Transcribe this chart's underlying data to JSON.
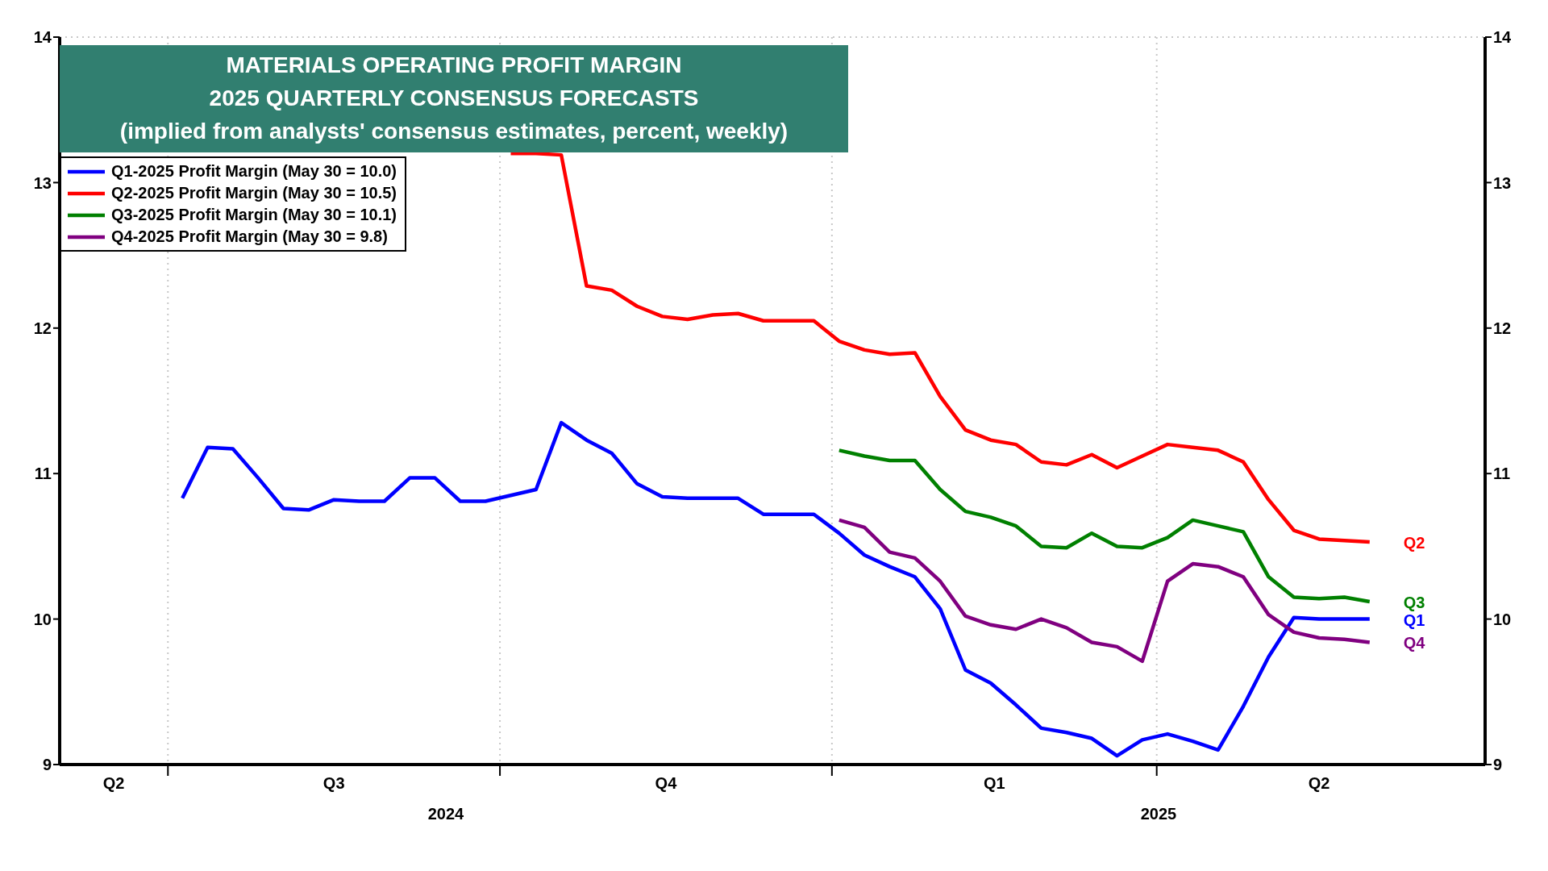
{
  "chart_data": {
    "type": "line",
    "title": "MATERIALS OPERATING PROFIT MARGIN",
    "subtitle": "2025 QUARTERLY CONSENSUS FORECASTS\n(implied from analysts' consensus estimates, percent, weekly)",
    "x": [
      "2024-07-05",
      "2024-07-12",
      "2024-07-19",
      "2024-07-26",
      "2024-08-02",
      "2024-08-09",
      "2024-08-16",
      "2024-08-23",
      "2024-08-30",
      "2024-09-06",
      "2024-09-13",
      "2024-09-20",
      "2024-09-27",
      "2024-10-04",
      "2024-10-11",
      "2024-10-18",
      "2024-10-25",
      "2024-11-01",
      "2024-11-08",
      "2024-11-15",
      "2024-11-22",
      "2024-11-29",
      "2024-12-06",
      "2024-12-13",
      "2024-12-20",
      "2024-12-27",
      "2025-01-03",
      "2025-01-10",
      "2025-01-17",
      "2025-01-24",
      "2025-01-31",
      "2025-02-07",
      "2025-02-14",
      "2025-02-21",
      "2025-02-28",
      "2025-03-07",
      "2025-03-14",
      "2025-03-21",
      "2025-03-28",
      "2025-04-04",
      "2025-04-11",
      "2025-04-18",
      "2025-04-25",
      "2025-05-02",
      "2025-05-09",
      "2025-05-16",
      "2025-05-23",
      "2025-05-30"
    ],
    "series": [
      {
        "name": "Q1-2025 Profit Margin (May 30 = 10.0)",
        "color": "#0000ff",
        "values": [
          10.83,
          11.18,
          11.17,
          10.97,
          10.76,
          10.75,
          10.82,
          10.81,
          10.81,
          10.97,
          10.97,
          10.81,
          10.81,
          10.85,
          10.89,
          11.35,
          11.23,
          11.14,
          10.93,
          10.84,
          10.83,
          10.83,
          10.83,
          10.72,
          10.72,
          10.72,
          10.59,
          10.44,
          10.36,
          10.29,
          10.07,
          9.65,
          9.56,
          9.41,
          9.25,
          9.22,
          9.18,
          9.06,
          9.17,
          9.21,
          9.16,
          9.1,
          9.4,
          9.74,
          10.01,
          10.0,
          10.0,
          10.0
        ]
      },
      {
        "name": "Q2-2025 Profit Margin (May 30 = 10.5)",
        "color": "#ff0000",
        "values": [
          null,
          null,
          null,
          null,
          null,
          null,
          null,
          null,
          null,
          null,
          null,
          null,
          null,
          13.2,
          13.2,
          13.19,
          12.29,
          12.26,
          12.15,
          12.08,
          12.06,
          12.09,
          12.1,
          12.05,
          12.05,
          12.05,
          11.91,
          11.85,
          11.82,
          11.83,
          11.53,
          11.3,
          11.23,
          11.2,
          11.08,
          11.06,
          11.13,
          11.04,
          11.12,
          11.2,
          11.18,
          11.16,
          11.08,
          10.82,
          10.61,
          10.55,
          10.54,
          10.53
        ]
      },
      {
        "name": "Q3-2025 Profit Margin (May 30 = 10.1)",
        "color": "#008000",
        "values": [
          null,
          null,
          null,
          null,
          null,
          null,
          null,
          null,
          null,
          null,
          null,
          null,
          null,
          null,
          null,
          null,
          null,
          null,
          null,
          null,
          null,
          null,
          null,
          null,
          null,
          null,
          11.16,
          11.12,
          11.09,
          11.09,
          10.89,
          10.74,
          10.7,
          10.64,
          10.5,
          10.49,
          10.59,
          10.5,
          10.49,
          10.56,
          10.68,
          10.64,
          10.6,
          10.29,
          10.15,
          10.14,
          10.15,
          10.12
        ]
      },
      {
        "name": "Q4-2025 Profit Margin (May 30 = 9.8)",
        "color": "#800080",
        "values": [
          null,
          null,
          null,
          null,
          null,
          null,
          null,
          null,
          null,
          null,
          null,
          null,
          null,
          null,
          null,
          null,
          null,
          null,
          null,
          null,
          null,
          null,
          null,
          null,
          null,
          null,
          10.68,
          10.63,
          10.46,
          10.42,
          10.26,
          10.02,
          9.96,
          9.93,
          10.0,
          9.94,
          9.84,
          9.81,
          9.71,
          10.26,
          10.38,
          10.36,
          10.29,
          10.03,
          9.91,
          9.87,
          9.86,
          9.84
        ]
      }
    ],
    "xlim": [
      "2024-06-01",
      "2025-07-01"
    ],
    "xticks": [
      {
        "value": "2024-06-16",
        "label": "Q2"
      },
      {
        "value": "2024-07-01",
        "label": null
      },
      {
        "value": "2024-08-16",
        "label": "Q3"
      },
      {
        "value": "2024-10-01",
        "label": null
      },
      {
        "value": "2024-11-16",
        "label": "Q4"
      },
      {
        "value": "2025-01-01",
        "label": null
      },
      {
        "value": "2025-02-15",
        "label": "Q1"
      },
      {
        "value": "2025-04-01",
        "label": null
      },
      {
        "value": "2025-05-16",
        "label": "Q2"
      }
    ],
    "ylim": [
      9,
      14
    ],
    "yticks": [
      9,
      10,
      11,
      12,
      13,
      14
    ],
    "y2lim": [
      9,
      14
    ],
    "y2ticks": [
      9,
      10,
      11,
      12,
      13,
      14
    ],
    "grid": true,
    "legend": "top left",
    "annotations": [
      {
        "text": "Q2",
        "x": "2025-05-30",
        "y": 10.53
      },
      {
        "text": "Q3",
        "x": "2025-05-30",
        "y": 10.12
      },
      {
        "text": "Q1",
        "x": "2025-05-30",
        "y": 10.0
      },
      {
        "text": "Q4",
        "x": "2025-05-30",
        "y": 9.84
      },
      "2024",
      "2025"
    ]
  }
}
